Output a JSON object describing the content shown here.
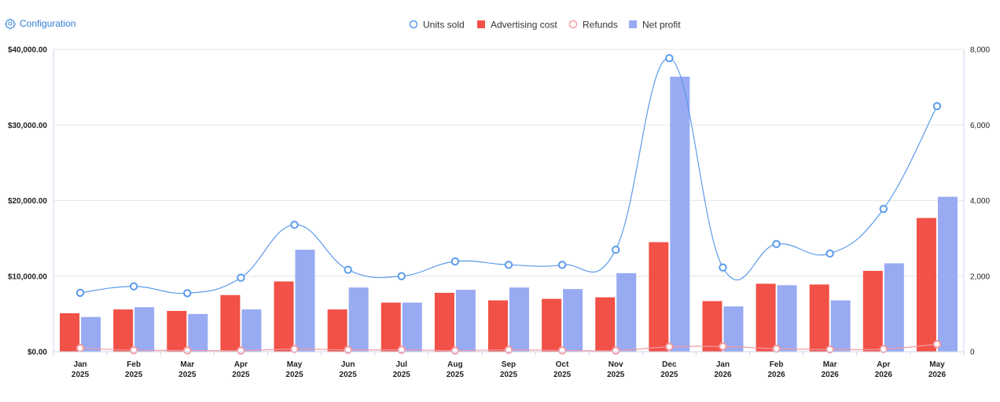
{
  "toolbar": {
    "config_label": "Configuration",
    "config_icon": "gear-icon"
  },
  "colors": {
    "units_sold": "#5b9bea",
    "advertising_cost": "#f15146",
    "refunds": "#f29aa2",
    "net_profit": "#98aaf2",
    "accent": "#2f7ed8"
  },
  "chart_data": {
    "type": "bar",
    "title": "",
    "legend": "top-center",
    "grid": true,
    "categories": [
      "Jan 2025",
      "Feb 2025",
      "Mar 2025",
      "Apr 2025",
      "May 2025",
      "Jun 2025",
      "Jul 2025",
      "Aug 2025",
      "Sep 2025",
      "Oct 2025",
      "Nov 2025",
      "Dec 2025",
      "Jan 2026",
      "Feb 2026",
      "Mar 2026",
      "Apr 2026",
      "May 2026"
    ],
    "category_lines": [
      [
        "Jan",
        "2025"
      ],
      [
        "Feb",
        "2025"
      ],
      [
        "Mar",
        "2025"
      ],
      [
        "Apr",
        "2025"
      ],
      [
        "May",
        "2025"
      ],
      [
        "Jun",
        "2025"
      ],
      [
        "Jul",
        "2025"
      ],
      [
        "Aug",
        "2025"
      ],
      [
        "Sep",
        "2025"
      ],
      [
        "Oct",
        "2025"
      ],
      [
        "Nov",
        "2025"
      ],
      [
        "Dec",
        "2025"
      ],
      [
        "Jan",
        "2026"
      ],
      [
        "Feb",
        "2026"
      ],
      [
        "Mar",
        "2026"
      ],
      [
        "Apr",
        "2026"
      ],
      [
        "May",
        "2026"
      ]
    ],
    "y_left": {
      "ylim": [
        0,
        40000
      ],
      "ticks": [
        0,
        10000,
        20000,
        30000,
        40000
      ],
      "tick_labels": [
        "$0.00",
        "$10,000.00",
        "$20,000.00",
        "$30,000.00",
        "$40,000.00"
      ]
    },
    "y_right": {
      "ylim": [
        0,
        8000
      ],
      "ticks": [
        0,
        2000,
        4000,
        6000,
        8000
      ],
      "tick_labels": [
        "0",
        "2,000",
        "4,000",
        "6,000",
        "8,000"
      ]
    },
    "series": [
      {
        "name": "Units sold",
        "type": "line",
        "axis": "right",
        "values": [
          1560,
          1730,
          1550,
          1960,
          3360,
          2170,
          2000,
          2390,
          2300,
          2300,
          2700,
          7770,
          2230,
          2850,
          2600,
          3780,
          6500
        ]
      },
      {
        "name": "Advertising cost",
        "type": "bar",
        "axis": "left",
        "values": [
          5100,
          5600,
          5400,
          7500,
          9300,
          5600,
          6500,
          7800,
          6800,
          7000,
          7200,
          14500,
          6700,
          9000,
          8900,
          10700,
          17700
        ]
      },
      {
        "name": "Refunds",
        "type": "line",
        "axis": "right",
        "values": [
          95,
          40,
          35,
          30,
          70,
          50,
          50,
          30,
          50,
          35,
          30,
          130,
          140,
          80,
          60,
          70,
          200
        ]
      },
      {
        "name": "Net profit",
        "type": "bar",
        "axis": "left",
        "values": [
          4600,
          5900,
          5000,
          5600,
          13500,
          8500,
          6500,
          8200,
          8500,
          8300,
          10400,
          36400,
          6000,
          8800,
          6800,
          11700,
          20500
        ]
      }
    ]
  }
}
